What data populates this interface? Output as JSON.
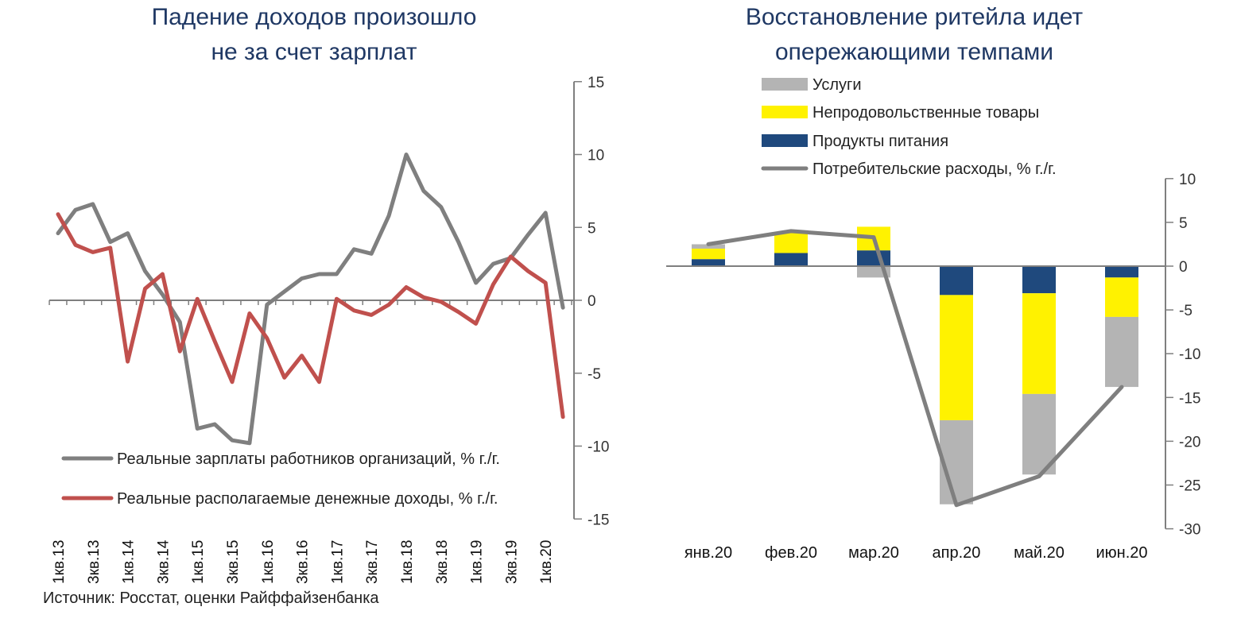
{
  "left": {
    "title1": "Падение доходов произошло",
    "title2": "не за счет зарплат"
  },
  "right": {
    "title1": "Восстановление ритейла идет",
    "title2": "опережающими темпами"
  },
  "source": "Источник: Росстат, оценки Райффайзенбанка",
  "colors": {
    "title": "#1f3864",
    "wages": "#7f7f7f",
    "income": "#c0504d",
    "services": "#b4b4b4",
    "nonfood": "#fff200",
    "food": "#1f497d",
    "consumption": "#7f7f7f"
  },
  "chart_data": [
    {
      "type": "line",
      "x": [
        "1кв.13",
        "2кв.13",
        "3кв.13",
        "4кв.13",
        "1кв.14",
        "2кв.14",
        "3кв.14",
        "4кв.14",
        "1кв.15",
        "2кв.15",
        "3кв.15",
        "4кв.15",
        "1кв.16",
        "2кв.16",
        "3кв.16",
        "4кв.16",
        "1кв.17",
        "2кв.17",
        "3кв.17",
        "4кв.17",
        "1кв.18",
        "2кв.18",
        "3кв.18",
        "4кв.18",
        "1кв.19",
        "2кв.19",
        "3кв.19",
        "4кв.19",
        "1кв.20",
        "2кв.20"
      ],
      "tick_labels": [
        "1кв.13",
        "3кв.13",
        "1кв.14",
        "3кв.14",
        "1кв.15",
        "3кв.15",
        "1кв.16",
        "3кв.16",
        "1кв.17",
        "3кв.17",
        "1кв.18",
        "3кв.18",
        "1кв.19",
        "3кв.19",
        "1кв.20"
      ],
      "series": [
        {
          "name": "Реальные зарплаты работников организаций, % г./г.",
          "values": [
            4.6,
            6.2,
            6.6,
            4.0,
            4.6,
            2.0,
            0.4,
            -1.5,
            -8.8,
            -8.5,
            -9.6,
            -9.8,
            -0.3,
            0.6,
            1.5,
            1.8,
            1.8,
            3.5,
            3.2,
            5.8,
            10.0,
            7.5,
            6.4,
            4.0,
            1.2,
            2.5,
            2.9,
            4.5,
            6.0,
            -0.5
          ]
        },
        {
          "name": "Реальные располагаемые денежные доходы, % г./г.",
          "values": [
            5.9,
            3.8,
            3.3,
            3.6,
            -4.2,
            0.8,
            1.8,
            -3.5,
            0.1,
            -2.8,
            -5.6,
            -0.9,
            -2.6,
            -5.3,
            -3.8,
            -5.6,
            0.1,
            -0.7,
            -1.0,
            -0.3,
            0.9,
            0.2,
            -0.1,
            -0.8,
            -1.6,
            1.1,
            3.0,
            2.0,
            1.2,
            -8.0
          ]
        }
      ],
      "ylim": [
        -15,
        15
      ],
      "yticks": [
        15,
        10,
        5,
        0,
        -5,
        -10,
        -15
      ],
      "grid": false,
      "legend": "bottom-left"
    },
    {
      "type": "bar",
      "stacked": true,
      "categories": [
        "янв.20",
        "фев.20",
        "мар.20",
        "апр.20",
        "май.20",
        "июн.20"
      ],
      "series": [
        {
          "name": "Услуги",
          "values": [
            0.5,
            0.0,
            -1.3,
            -9.6,
            -9.2,
            -8.0
          ]
        },
        {
          "name": "Непродовольственные товары",
          "values": [
            1.2,
            2.3,
            2.7,
            -14.3,
            -11.5,
            -4.5
          ]
        },
        {
          "name": "Продукты питания",
          "values": [
            0.8,
            1.5,
            1.8,
            -3.3,
            -3.1,
            -1.3
          ]
        }
      ],
      "line": {
        "name": "Потребительские расходы, % г./г.",
        "values": [
          2.5,
          4.0,
          3.3,
          -27.3,
          -24.0,
          -13.8
        ]
      },
      "ylim": [
        -30,
        10
      ],
      "yticks": [
        10,
        5,
        0,
        -5,
        -10,
        -15,
        -20,
        -25,
        -30
      ],
      "grid": false,
      "legend": "top-left"
    }
  ]
}
